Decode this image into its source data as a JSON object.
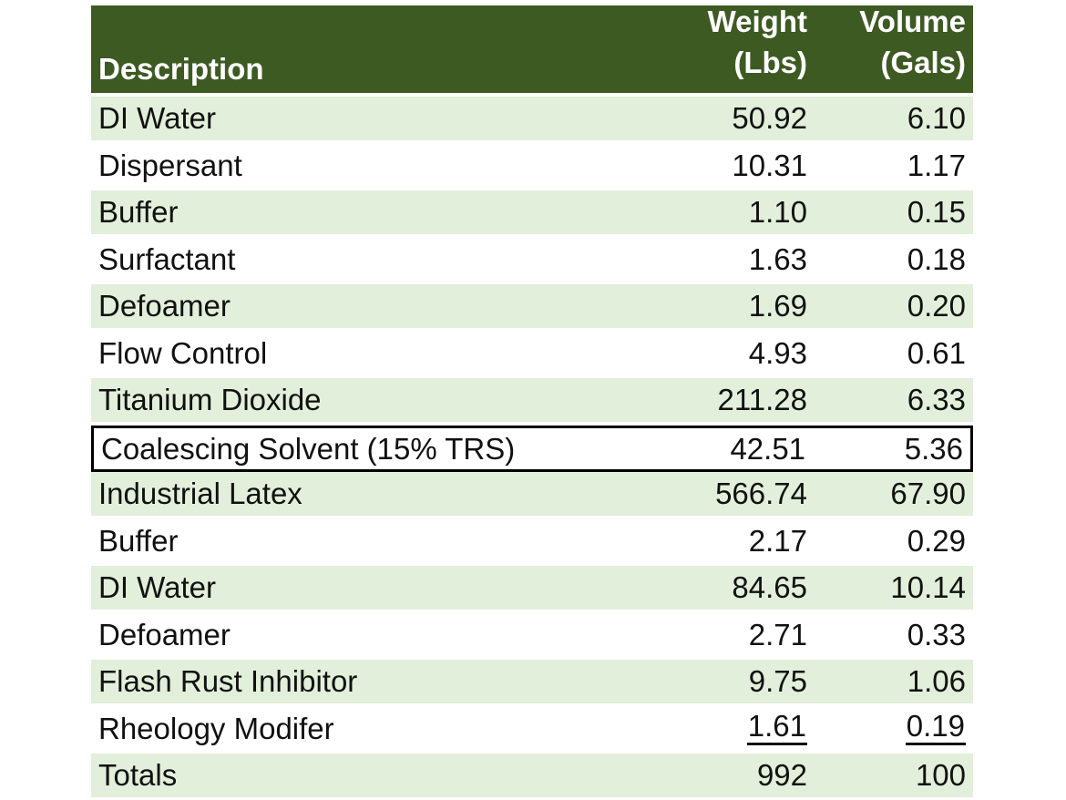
{
  "colors": {
    "header-bg": "#3E5A23",
    "header-text": "#FFFFFF",
    "band-green": "#E2EFDA",
    "row-white": "#FFFFFF",
    "text": "#111111",
    "box-border": "#000000"
  },
  "table": {
    "header": {
      "description": "Description",
      "weight_line1": "Weight",
      "weight_line2": "(Lbs)",
      "volume_line1": "Volume",
      "volume_line2": "(Gals)"
    },
    "rows": [
      {
        "description": "DI Water",
        "weight": "50.92",
        "volume": "6.10"
      },
      {
        "description": "Dispersant",
        "weight": "10.31",
        "volume": "1.17"
      },
      {
        "description": "Buffer",
        "weight": "1.10",
        "volume": "0.15"
      },
      {
        "description": "Surfactant",
        "weight": "1.63",
        "volume": "0.18"
      },
      {
        "description": "Defoamer",
        "weight": "1.69",
        "volume": "0.20"
      },
      {
        "description": "Flow Control",
        "weight": "4.93",
        "volume": "0.61"
      },
      {
        "description": "Titanium Dioxide",
        "weight": "211.28",
        "volume": "6.33"
      },
      {
        "description": "Coalescing Solvent (15% TRS)",
        "weight": "42.51",
        "volume": "5.36",
        "boxed": true
      },
      {
        "description": "Industrial Latex",
        "weight": "566.74",
        "volume": "67.90"
      },
      {
        "description": "Buffer",
        "weight": "2.17",
        "volume": "0.29"
      },
      {
        "description": "DI Water",
        "weight": "84.65",
        "volume": "10.14"
      },
      {
        "description": "Defoamer",
        "weight": "2.71",
        "volume": "0.33"
      },
      {
        "description": "Flash Rust Inhibitor",
        "weight": "9.75",
        "volume": "1.06"
      },
      {
        "description": "Rheology Modifer",
        "weight": "1.61",
        "volume": "0.19",
        "underlined": true
      },
      {
        "description": "Totals",
        "weight": "992",
        "volume": "100",
        "is_totals": true
      }
    ]
  }
}
